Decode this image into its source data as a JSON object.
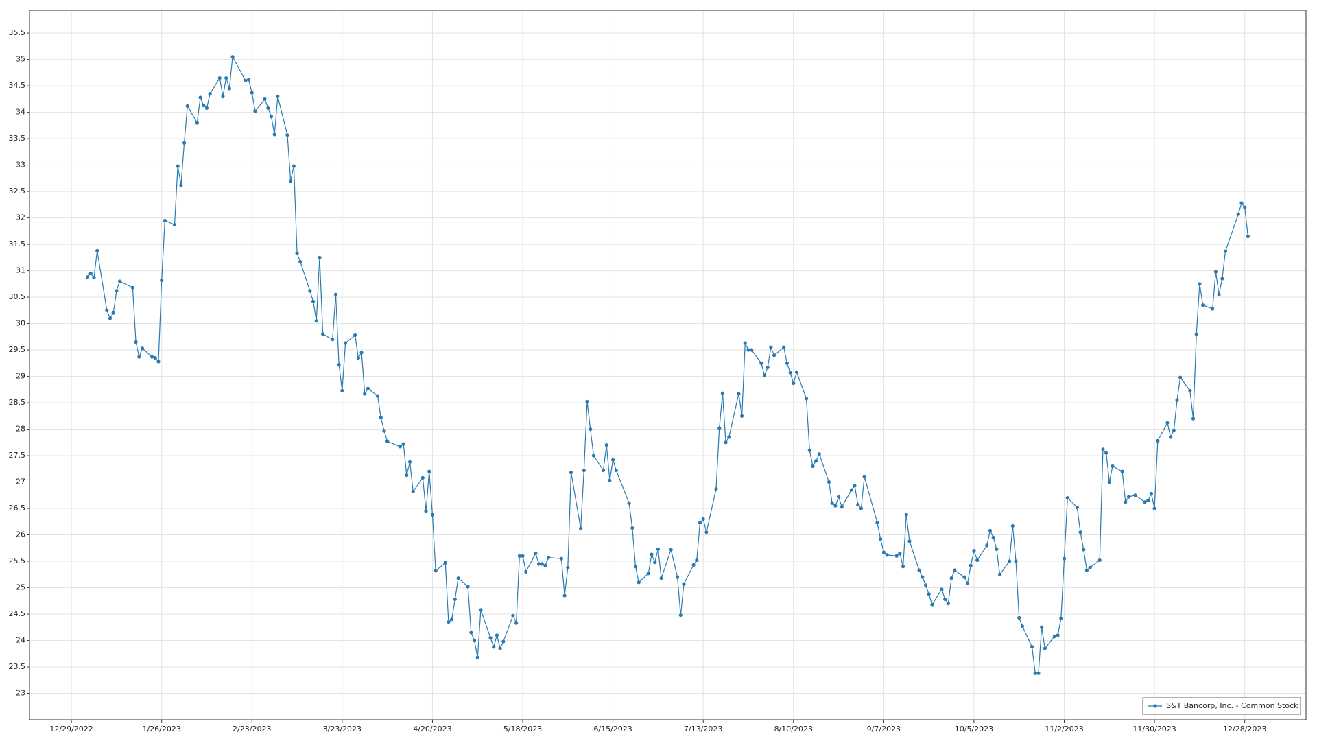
{
  "chart_data": {
    "type": "line",
    "x": [
      "1/3/2023",
      "1/4/2023",
      "1/5/2023",
      "1/6/2023",
      "1/9/2023",
      "1/10/2023",
      "1/11/2023",
      "1/12/2023",
      "1/13/2023",
      "1/17/2023",
      "1/18/2023",
      "1/19/2023",
      "1/20/2023",
      "1/23/2023",
      "1/24/2023",
      "1/25/2023",
      "1/26/2023",
      "1/27/2023",
      "1/30/2023",
      "1/31/2023",
      "2/1/2023",
      "2/2/2023",
      "2/3/2023",
      "2/6/2023",
      "2/7/2023",
      "2/8/2023",
      "2/9/2023",
      "2/10/2023",
      "2/13/2023",
      "2/14/2023",
      "2/15/2023",
      "2/16/2023",
      "2/17/2023",
      "2/21/2023",
      "2/22/2023",
      "2/23/2023",
      "2/24/2023",
      "2/27/2023",
      "2/28/2023",
      "3/1/2023",
      "3/2/2023",
      "3/3/2023",
      "3/6/2023",
      "3/7/2023",
      "3/8/2023",
      "3/9/2023",
      "3/10/2023",
      "3/13/2023",
      "3/14/2023",
      "3/15/2023",
      "3/16/2023",
      "3/17/2023",
      "3/20/2023",
      "3/21/2023",
      "3/22/2023",
      "3/23/2023",
      "3/24/2023",
      "3/27/2023",
      "3/28/2023",
      "3/29/2023",
      "3/30/2023",
      "3/31/2023",
      "4/3/2023",
      "4/4/2023",
      "4/5/2023",
      "4/6/2023",
      "4/10/2023",
      "4/11/2023",
      "4/12/2023",
      "4/13/2023",
      "4/14/2023",
      "4/17/2023",
      "4/18/2023",
      "4/19/2023",
      "4/20/2023",
      "4/21/2023",
      "4/24/2023",
      "4/25/2023",
      "4/26/2023",
      "4/27/2023",
      "4/28/2023",
      "5/1/2023",
      "5/2/2023",
      "5/3/2023",
      "5/4/2023",
      "5/5/2023",
      "5/8/2023",
      "5/9/2023",
      "5/10/2023",
      "5/11/2023",
      "5/12/2023",
      "5/15/2023",
      "5/16/2023",
      "5/17/2023",
      "5/18/2023",
      "5/19/2023",
      "5/22/2023",
      "5/23/2023",
      "5/24/2023",
      "5/25/2023",
      "5/26/2023",
      "5/30/2023",
      "5/31/2023",
      "6/1/2023",
      "6/2/2023",
      "6/5/2023",
      "6/6/2023",
      "6/7/2023",
      "6/8/2023",
      "6/9/2023",
      "6/12/2023",
      "6/13/2023",
      "6/14/2023",
      "6/15/2023",
      "6/16/2023",
      "6/20/2023",
      "6/21/2023",
      "6/22/2023",
      "6/23/2023",
      "6/26/2023",
      "6/27/2023",
      "6/28/2023",
      "6/29/2023",
      "6/30/2023",
      "7/3/2023",
      "7/5/2023",
      "7/6/2023",
      "7/7/2023",
      "7/10/2023",
      "7/11/2023",
      "7/12/2023",
      "7/13/2023",
      "7/14/2023",
      "7/17/2023",
      "7/18/2023",
      "7/19/2023",
      "7/20/2023",
      "7/21/2023",
      "7/24/2023",
      "7/25/2023",
      "7/26/2023",
      "7/27/2023",
      "7/28/2023",
      "7/31/2023",
      "8/1/2023",
      "8/2/2023",
      "8/3/2023",
      "8/4/2023",
      "8/7/2023",
      "8/8/2023",
      "8/9/2023",
      "8/10/2023",
      "8/11/2023",
      "8/14/2023",
      "8/15/2023",
      "8/16/2023",
      "8/17/2023",
      "8/18/2023",
      "8/21/2023",
      "8/22/2023",
      "8/23/2023",
      "8/24/2023",
      "8/25/2023",
      "8/28/2023",
      "8/29/2023",
      "8/30/2023",
      "8/31/2023",
      "9/1/2023",
      "9/5/2023",
      "9/6/2023",
      "9/7/2023",
      "9/8/2023",
      "9/11/2023",
      "9/12/2023",
      "9/13/2023",
      "9/14/2023",
      "9/15/2023",
      "9/18/2023",
      "9/19/2023",
      "9/20/2023",
      "9/21/2023",
      "9/22/2023",
      "9/25/2023",
      "9/26/2023",
      "9/27/2023",
      "9/28/2023",
      "9/29/2023",
      "10/2/2023",
      "10/3/2023",
      "10/4/2023",
      "10/5/2023",
      "10/6/2023",
      "10/9/2023",
      "10/10/2023",
      "10/11/2023",
      "10/12/2023",
      "10/13/2023",
      "10/16/2023",
      "10/17/2023",
      "10/18/2023",
      "10/19/2023",
      "10/20/2023",
      "10/23/2023",
      "10/24/2023",
      "10/25/2023",
      "10/26/2023",
      "10/27/2023",
      "10/30/2023",
      "10/31/2023",
      "11/1/2023",
      "11/2/2023",
      "11/3/2023",
      "11/6/2023",
      "11/7/2023",
      "11/8/2023",
      "11/9/2023",
      "11/10/2023",
      "11/13/2023",
      "11/14/2023",
      "11/15/2023",
      "11/16/2023",
      "11/17/2023",
      "11/20/2023",
      "11/21/2023",
      "11/22/2023",
      "11/24/2023",
      "11/27/2023",
      "11/28/2023",
      "11/29/2023",
      "11/30/2023",
      "12/1/2023",
      "12/4/2023",
      "12/5/2023",
      "12/6/2023",
      "12/7/2023",
      "12/8/2023",
      "12/11/2023",
      "12/12/2023",
      "12/13/2023",
      "12/14/2023",
      "12/15/2023",
      "12/18/2023",
      "12/19/2023",
      "12/20/2023",
      "12/21/2023",
      "12/22/2023",
      "12/26/2023",
      "12/27/2023",
      "12/28/2023",
      "12/29/2023"
    ],
    "series": [
      {
        "name": "S&T Bancorp, Inc. - Common Stock",
        "color": "#2a7ab0",
        "values": [
          30.88,
          30.95,
          30.87,
          31.38,
          30.25,
          30.1,
          30.2,
          30.62,
          30.8,
          30.68,
          29.65,
          29.37,
          29.53,
          29.37,
          29.35,
          29.28,
          30.82,
          31.95,
          31.87,
          32.98,
          32.62,
          33.42,
          34.12,
          33.8,
          34.28,
          34.13,
          34.08,
          34.35,
          34.65,
          34.3,
          34.65,
          34.45,
          35.05,
          34.6,
          34.62,
          34.37,
          34.02,
          34.25,
          34.08,
          33.92,
          33.58,
          34.3,
          33.57,
          32.7,
          32.98,
          31.33,
          31.17,
          30.62,
          30.42,
          30.05,
          31.25,
          29.8,
          29.7,
          30.55,
          29.22,
          28.73,
          29.63,
          29.78,
          29.35,
          29.45,
          28.67,
          28.77,
          28.63,
          28.22,
          27.97,
          27.77,
          27.67,
          27.72,
          27.13,
          27.38,
          26.82,
          27.08,
          26.45,
          27.2,
          26.38,
          25.32,
          25.47,
          24.35,
          24.4,
          24.78,
          25.18,
          25.02,
          24.15,
          24.0,
          23.68,
          24.58,
          24.05,
          23.88,
          24.1,
          23.85,
          23.98,
          24.47,
          24.33,
          25.6,
          25.6,
          25.3,
          25.65,
          25.45,
          25.45,
          25.42,
          25.57,
          25.55,
          24.85,
          25.38,
          27.18,
          26.12,
          27.22,
          28.52,
          28.0,
          27.5,
          27.22,
          27.7,
          27.03,
          27.42,
          27.22,
          26.6,
          26.13,
          25.4,
          25.1,
          25.27,
          25.63,
          25.48,
          25.73,
          25.18,
          25.72,
          25.2,
          24.48,
          25.07,
          25.43,
          25.52,
          26.23,
          26.3,
          26.05,
          26.87,
          28.02,
          28.68,
          27.75,
          27.85,
          28.67,
          28.25,
          29.63,
          29.5,
          29.5,
          29.25,
          29.02,
          29.17,
          29.55,
          29.4,
          29.55,
          29.25,
          29.07,
          28.87,
          29.08,
          28.58,
          27.6,
          27.3,
          27.4,
          27.53,
          27.0,
          26.6,
          26.55,
          26.72,
          26.53,
          26.85,
          26.93,
          26.57,
          26.5,
          27.1,
          26.23,
          25.92,
          25.67,
          25.62,
          25.6,
          25.65,
          25.4,
          26.38,
          25.88,
          25.33,
          25.2,
          25.05,
          24.88,
          24.68,
          24.97,
          24.78,
          24.7,
          25.18,
          25.33,
          25.2,
          25.08,
          25.42,
          25.7,
          25.52,
          25.8,
          26.08,
          25.95,
          25.73,
          25.25,
          25.5,
          26.17,
          25.5,
          24.43,
          24.27,
          23.88,
          23.38,
          23.38,
          24.25,
          23.85,
          24.08,
          24.1,
          24.42,
          25.55,
          26.7,
          26.52,
          26.05,
          25.72,
          25.33,
          25.38,
          25.52,
          27.62,
          27.55,
          27.0,
          27.3,
          27.2,
          26.62,
          26.72,
          26.75,
          26.62,
          26.65,
          26.78,
          26.5,
          27.78,
          28.12,
          27.85,
          27.98,
          28.55,
          28.98,
          28.73,
          28.2,
          29.8,
          30.75,
          30.35,
          30.28,
          30.98,
          30.55,
          30.85,
          31.37,
          32.07,
          32.28,
          32.2,
          31.65
        ]
      }
    ],
    "xlim": [
      "12/16/2022",
      "1/16/2024"
    ],
    "xticks": [
      "12/29/2022",
      "1/26/2023",
      "2/23/2023",
      "3/23/2023",
      "4/20/2023",
      "5/18/2023",
      "6/15/2023",
      "7/13/2023",
      "8/10/2023",
      "9/7/2023",
      "10/5/2023",
      "11/2/2023",
      "11/30/2023",
      "12/28/2023"
    ],
    "ylim": [
      22.5,
      35.93
    ],
    "yticks": [
      23,
      23.5,
      24,
      24.5,
      25,
      25.5,
      26,
      26.5,
      27,
      27.5,
      28,
      28.5,
      29,
      29.5,
      30,
      30.5,
      31,
      31.5,
      32,
      32.5,
      33,
      33.5,
      34,
      34.5,
      35,
      35.5
    ],
    "grid": true,
    "legend": "lower right"
  }
}
